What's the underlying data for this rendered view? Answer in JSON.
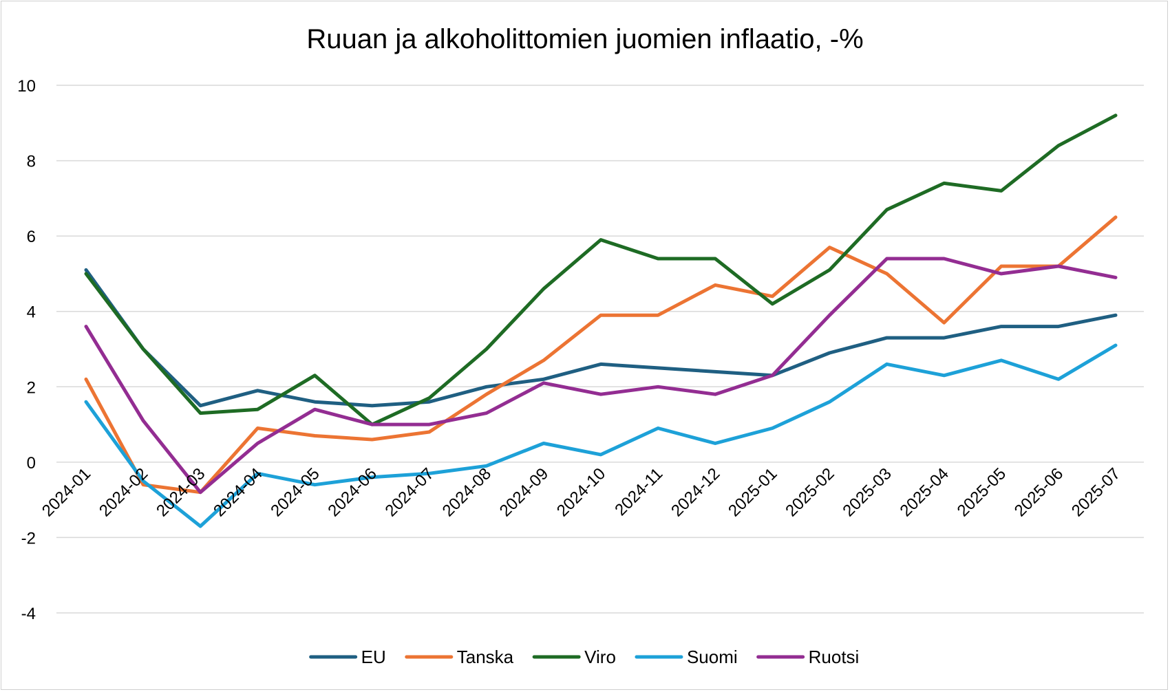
{
  "chart_data": {
    "type": "line",
    "title": "Ruuan ja alkoholittomien juomien inflaatio, -%",
    "xlabel": "",
    "ylabel": "",
    "ylim": [
      -4,
      10
    ],
    "yticks": [
      -4,
      -2,
      0,
      2,
      4,
      6,
      8,
      10
    ],
    "grid": true,
    "legend_position": "bottom",
    "categories": [
      "2024-01",
      "2024-02",
      "2024-03",
      "2024-04",
      "2024-05",
      "2024-06",
      "2024-07",
      "2024-08",
      "2024-09",
      "2024-10",
      "2024-11",
      "2024-12",
      "2025-01",
      "2025-02",
      "2025-03",
      "2025-04",
      "2025-05",
      "2025-06",
      "2025-07"
    ],
    "series": [
      {
        "name": "EU",
        "color": "#1f5f82",
        "values": [
          5.1,
          3.0,
          1.5,
          1.9,
          1.6,
          1.5,
          1.6,
          2.0,
          2.2,
          2.6,
          2.5,
          2.4,
          2.3,
          2.9,
          3.3,
          3.3,
          3.6,
          3.6,
          3.9
        ]
      },
      {
        "name": "Tanska",
        "color": "#ec7433",
        "values": [
          2.2,
          -0.6,
          -0.8,
          0.9,
          0.7,
          0.6,
          0.8,
          1.8,
          2.7,
          3.9,
          3.9,
          4.7,
          4.4,
          5.7,
          5.0,
          3.7,
          5.2,
          5.2,
          6.5
        ]
      },
      {
        "name": "Viro",
        "color": "#1e6b24",
        "values": [
          5.0,
          3.0,
          1.3,
          1.4,
          2.3,
          1.0,
          1.7,
          3.0,
          4.6,
          5.9,
          5.4,
          5.4,
          4.2,
          5.1,
          6.7,
          7.4,
          7.2,
          8.4,
          9.2
        ]
      },
      {
        "name": "Suomi",
        "color": "#1da1d8",
        "values": [
          1.6,
          -0.5,
          -1.7,
          -0.3,
          -0.6,
          -0.4,
          -0.3,
          -0.1,
          0.5,
          0.2,
          0.9,
          0.5,
          0.9,
          1.6,
          2.6,
          2.3,
          2.7,
          2.2,
          3.1
        ]
      },
      {
        "name": "Ruotsi",
        "color": "#932d92",
        "values": [
          3.6,
          1.1,
          -0.8,
          0.5,
          1.4,
          1.0,
          1.0,
          1.3,
          2.1,
          1.8,
          2.0,
          1.8,
          2.3,
          3.9,
          5.4,
          5.4,
          5.0,
          5.2,
          4.9
        ]
      }
    ]
  }
}
